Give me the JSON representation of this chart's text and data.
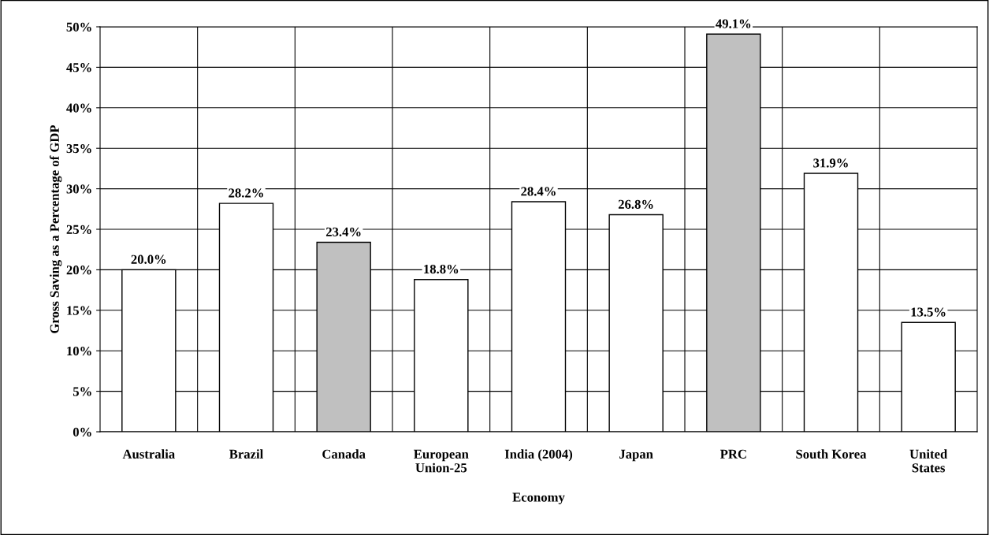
{
  "chart_data": {
    "type": "bar",
    "xlabel": "Economy",
    "ylabel": "Gross Saving as a Percentage of GDP",
    "categories": [
      "Australia",
      "Brazil",
      "Canada",
      "European\nUnion-25",
      "India (2004)",
      "Japan",
      "PRC",
      "South Korea",
      "United\nStates"
    ],
    "values": [
      20.0,
      28.2,
      23.4,
      18.8,
      28.4,
      26.8,
      49.1,
      31.9,
      13.5
    ],
    "value_labels": [
      "20.0%",
      "28.2%",
      "23.4%",
      "18.8%",
      "28.4%",
      "26.8%",
      "49.1%",
      "31.9%",
      "13.5%"
    ],
    "colors": [
      "#ffffff",
      "#ffffff",
      "#c0c0c0",
      "#ffffff",
      "#ffffff",
      "#ffffff",
      "#c0c0c0",
      "#ffffff",
      "#ffffff"
    ],
    "ylim": [
      0,
      50
    ],
    "yticks": [
      {
        "value": 0,
        "label": "0%"
      },
      {
        "value": 5,
        "label": "5%"
      },
      {
        "value": 10,
        "label": "10%"
      },
      {
        "value": 15,
        "label": "15%"
      },
      {
        "value": 20,
        "label": "20%"
      },
      {
        "value": 25,
        "label": "25%"
      },
      {
        "value": 30,
        "label": "30%"
      },
      {
        "value": 35,
        "label": "35%"
      },
      {
        "value": 40,
        "label": "40%"
      },
      {
        "value": 45,
        "label": "45%"
      },
      {
        "value": 50,
        "label": "50%"
      }
    ],
    "grid": true,
    "legend": false
  }
}
